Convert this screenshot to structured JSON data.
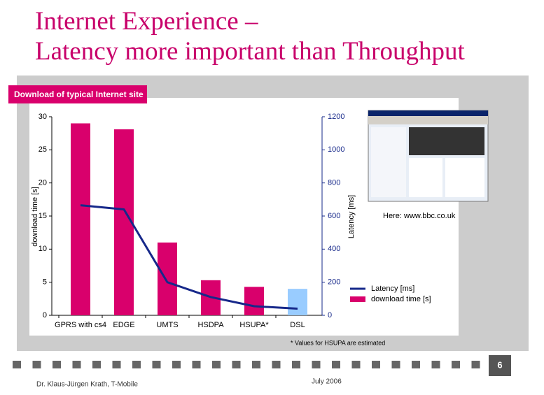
{
  "slide": {
    "title_lines": [
      "Internet Experience –",
      "Latency more important than Throughput"
    ],
    "banner": "Download of typical Internet site",
    "screenshot_caption": "Here: www.bbc.co.uk",
    "footnote": "* Values for HSUPA are estimated",
    "page_number": "6",
    "author": "Dr. Klaus-Jürgen Krath, T-Mobile",
    "date": "July 2006"
  },
  "chart_data": {
    "type": "bar",
    "categories": [
      "GPRS with cs4",
      "EDGE",
      "UMTS",
      "HSDPA",
      "HSUPA*",
      "DSL"
    ],
    "series": [
      {
        "name": "download time [s]",
        "type": "bar",
        "color": "#d9006c",
        "colors": [
          "#d9006c",
          "#d9006c",
          "#d9006c",
          "#d9006c",
          "#d9006c",
          "#99ccff"
        ],
        "values": [
          29,
          28.1,
          11,
          5.3,
          4.3,
          4
        ]
      },
      {
        "name": "Latency [ms]",
        "type": "line",
        "axis": "y2",
        "color": "#16288a",
        "values": [
          665,
          640,
          200,
          110,
          55,
          40
        ]
      }
    ],
    "y_label": "download time [s]",
    "y2_label": "Latency [ms]",
    "ylim": [
      0,
      30
    ],
    "yticks": [
      0,
      5,
      10,
      15,
      20,
      25,
      30
    ],
    "y2lim": [
      0,
      1200
    ],
    "y2ticks": [
      0,
      200,
      400,
      600,
      800,
      1000,
      1200
    ],
    "grid": false
  }
}
